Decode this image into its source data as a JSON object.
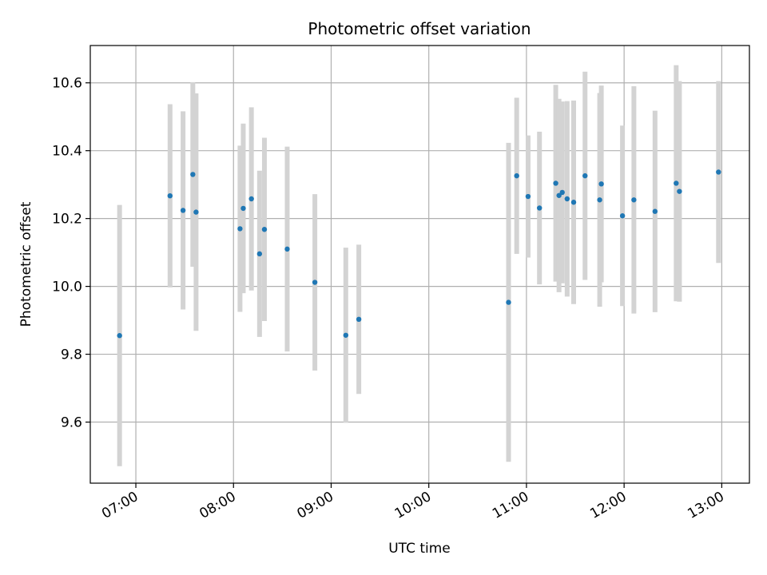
{
  "chart_data": {
    "type": "scatter",
    "title": "Photometric offset variation",
    "xlabel": "UTC time",
    "ylabel": "Photometric offset",
    "x_tick_labels": [
      "07:00",
      "08:00",
      "09:00",
      "10:00",
      "11:00",
      "12:00",
      "13:00"
    ],
    "x_ticks": [
      "07:00",
      "08:00",
      "09:00",
      "10:00",
      "11:00",
      "12:00",
      "13:00"
    ],
    "y_ticks": [
      9.6,
      9.8,
      10.0,
      10.2,
      10.4,
      10.6
    ],
    "y_tick_labels": [
      "9.6",
      "9.8",
      "10.0",
      "10.2",
      "10.4",
      "10.6"
    ],
    "xlim": [
      "06:32",
      "13:17"
    ],
    "ylim": [
      9.42,
      10.71
    ],
    "grid": true,
    "colors": {
      "point": "#1f77b4",
      "errorbar": "#d3d3d3",
      "grid": "#b0b0b0"
    },
    "points": [
      {
        "x": "06:50",
        "y": 9.855,
        "yerr": 0.385
      },
      {
        "x": "07:21",
        "y": 10.267,
        "yerr": 0.27
      },
      {
        "x": "07:29",
        "y": 10.224,
        "yerr": 0.292
      },
      {
        "x": "07:35",
        "y": 10.33,
        "yerr": 0.272
      },
      {
        "x": "07:37",
        "y": 10.219,
        "yerr": 0.35
      },
      {
        "x": "08:04",
        "y": 10.17,
        "yerr": 0.245
      },
      {
        "x": "08:06",
        "y": 10.23,
        "yerr": 0.25
      },
      {
        "x": "08:11",
        "y": 10.258,
        "yerr": 0.27
      },
      {
        "x": "08:16",
        "y": 10.096,
        "yerr": 0.245
      },
      {
        "x": "08:19",
        "y": 10.168,
        "yerr": 0.27
      },
      {
        "x": "08:33",
        "y": 10.11,
        "yerr": 0.302
      },
      {
        "x": "08:50",
        "y": 10.012,
        "yerr": 0.26
      },
      {
        "x": "09:09",
        "y": 9.856,
        "yerr": 0.258
      },
      {
        "x": "09:17",
        "y": 9.903,
        "yerr": 0.22
      },
      {
        "x": "10:49",
        "y": 9.953,
        "yerr": 0.47
      },
      {
        "x": "10:54",
        "y": 10.326,
        "yerr": 0.23
      },
      {
        "x": "11:01",
        "y": 10.265,
        "yerr": 0.18
      },
      {
        "x": "11:08",
        "y": 10.231,
        "yerr": 0.225
      },
      {
        "x": "11:18",
        "y": 10.304,
        "yerr": 0.29
      },
      {
        "x": "11:20",
        "y": 10.268,
        "yerr": 0.285
      },
      {
        "x": "11:22",
        "y": 10.277,
        "yerr": 0.268
      },
      {
        "x": "11:25",
        "y": 10.258,
        "yerr": 0.288
      },
      {
        "x": "11:29",
        "y": 10.248,
        "yerr": 0.3
      },
      {
        "x": "11:36",
        "y": 10.326,
        "yerr": 0.307
      },
      {
        "x": "11:45",
        "y": 10.255,
        "yerr": 0.315
      },
      {
        "x": "11:46",
        "y": 10.302,
        "yerr": 0.29
      },
      {
        "x": "11:59",
        "y": 10.208,
        "yerr": 0.266
      },
      {
        "x": "12:06",
        "y": 10.255,
        "yerr": 0.335
      },
      {
        "x": "12:19",
        "y": 10.221,
        "yerr": 0.297
      },
      {
        "x": "12:32",
        "y": 10.304,
        "yerr": 0.348
      },
      {
        "x": "12:34",
        "y": 10.28,
        "yerr": 0.325
      },
      {
        "x": "12:58",
        "y": 10.337,
        "yerr": 0.268
      }
    ]
  }
}
